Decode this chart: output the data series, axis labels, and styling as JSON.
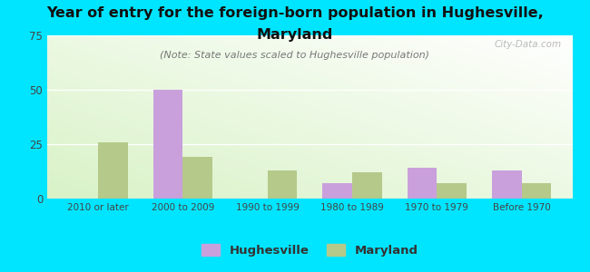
{
  "title_line1": "Year of entry for the foreign-born population in Hughesville,",
  "title_line2": "Maryland",
  "subtitle": "(Note: State values scaled to Hughesville population)",
  "categories": [
    "2010 or later",
    "2000 to 2009",
    "1990 to 1999",
    "1980 to 1989",
    "1970 to 1979",
    "Before 1970"
  ],
  "hughesville_values": [
    0,
    50,
    0,
    7,
    14,
    13
  ],
  "maryland_values": [
    26,
    19,
    13,
    12,
    7,
    7
  ],
  "hughesville_color": "#c9a0dc",
  "maryland_color": "#b5c98a",
  "bg_color": "#00e5ff",
  "ylim": [
    0,
    75
  ],
  "yticks": [
    0,
    25,
    50,
    75
  ],
  "bar_width": 0.35,
  "title_fontsize": 11.5,
  "subtitle_fontsize": 8,
  "watermark": "City-Data.com"
}
